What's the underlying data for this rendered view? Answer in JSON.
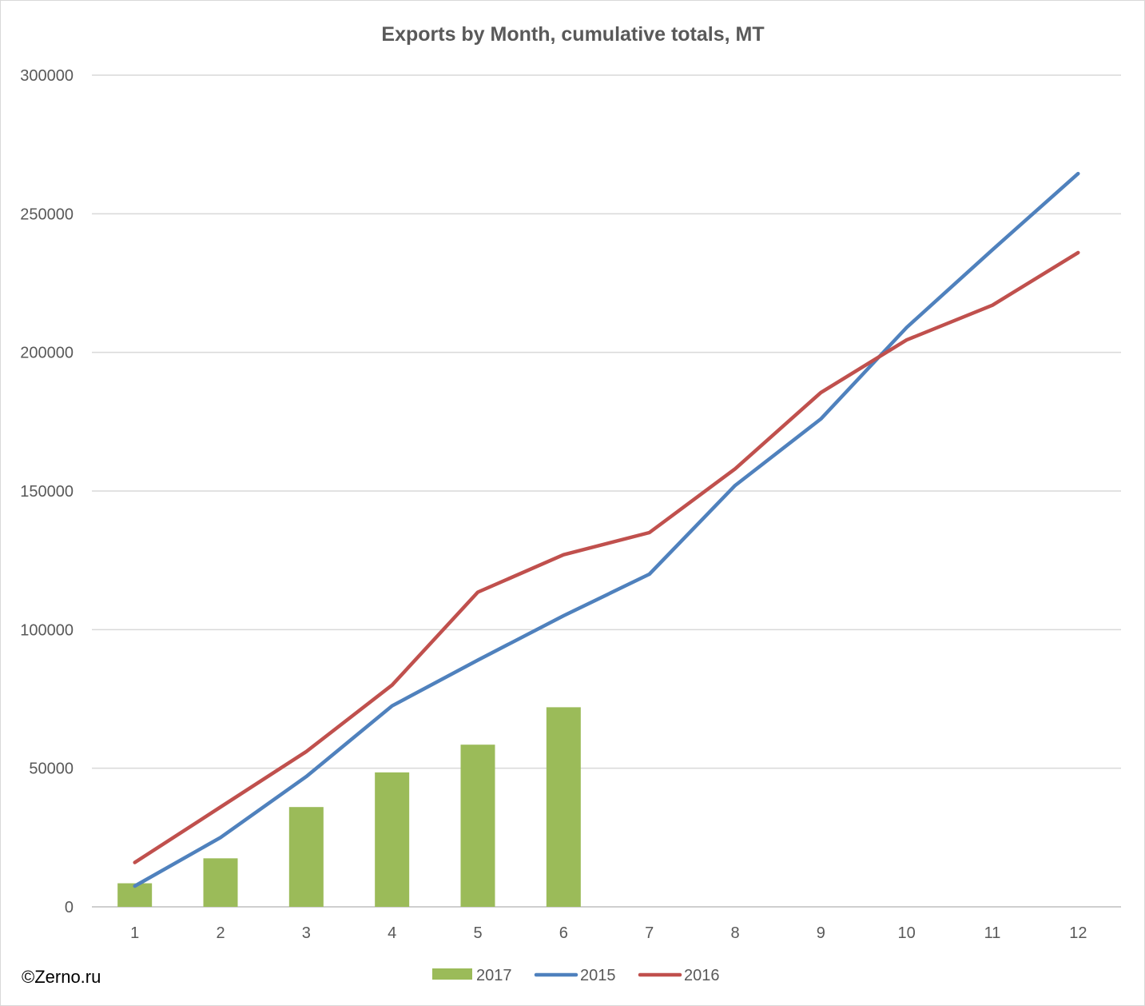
{
  "chart_data": {
    "type": "bar+line",
    "title": "Exports by Month, cumulative totals, MT",
    "xlabel": "",
    "ylabel": "",
    "categories": [
      "1",
      "2",
      "3",
      "4",
      "5",
      "6",
      "7",
      "8",
      "9",
      "10",
      "11",
      "12"
    ],
    "ylim": [
      0,
      300000
    ],
    "yticks": [
      "0",
      "50000",
      "100000",
      "150000",
      "200000",
      "250000",
      "300000"
    ],
    "grid": true,
    "legend_position": "bottom",
    "series": [
      {
        "name": "2017",
        "type": "bar",
        "color": "#9bbb59",
        "values": [
          8500,
          17500,
          36000,
          48500,
          58500,
          72000,
          null,
          null,
          null,
          null,
          null,
          null
        ]
      },
      {
        "name": "2015",
        "type": "line",
        "color": "#4f81bd",
        "values": [
          7500,
          25000,
          47000,
          72500,
          89000,
          105000,
          120000,
          152000,
          176000,
          209000,
          237000,
          264500
        ]
      },
      {
        "name": "2016",
        "type": "line",
        "color": "#c0504d",
        "values": [
          16000,
          36000,
          56000,
          80000,
          113500,
          127000,
          135000,
          158000,
          185500,
          204500,
          217000,
          236000
        ]
      }
    ]
  },
  "watermark": "©Zerno.ru"
}
